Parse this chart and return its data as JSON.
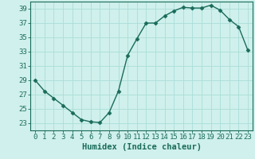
{
  "x": [
    0,
    1,
    2,
    3,
    4,
    5,
    6,
    7,
    8,
    9,
    10,
    11,
    12,
    13,
    14,
    15,
    16,
    17,
    18,
    19,
    20,
    21,
    22,
    23
  ],
  "y": [
    29,
    27.5,
    26.5,
    25.5,
    24.5,
    23.5,
    23.2,
    23.1,
    24.5,
    27.5,
    32.5,
    34.8,
    37,
    37,
    38,
    38.7,
    39.2,
    39.1,
    39.1,
    39.5,
    38.8,
    37.5,
    36.5,
    33.2
  ],
  "line_color": "#1a6b5a",
  "marker": "D",
  "marker_size": 2.5,
  "bg_color": "#cff0ec",
  "grid_color": "#aaddd8",
  "xlabel": "Humidex (Indice chaleur)",
  "xlim": [
    -0.5,
    23.5
  ],
  "ylim": [
    22,
    40
  ],
  "yticks": [
    23,
    25,
    27,
    29,
    31,
    33,
    35,
    37,
    39
  ],
  "xticks": [
    0,
    1,
    2,
    3,
    4,
    5,
    6,
    7,
    8,
    9,
    10,
    11,
    12,
    13,
    14,
    15,
    16,
    17,
    18,
    19,
    20,
    21,
    22,
    23
  ],
  "tick_color": "#1a6b5a",
  "label_color": "#1a6b5a",
  "xlabel_fontsize": 7.5,
  "tick_fontsize": 6.5
}
